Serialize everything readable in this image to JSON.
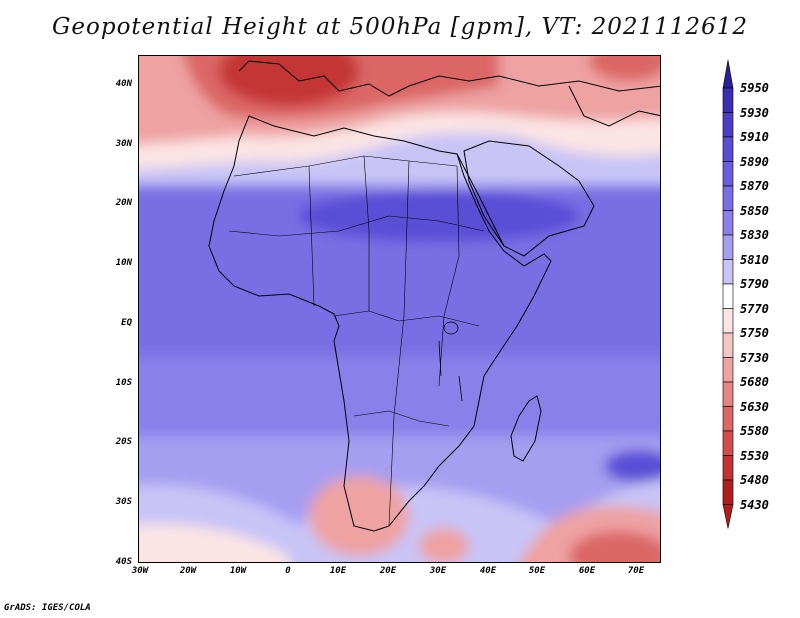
{
  "title": "Geopotential Height at 500hPa [gpm], VT: 2021112612",
  "credit": "GrADS: IGES/COLA",
  "lat_labels": [
    "40N",
    "30N",
    "20N",
    "10N",
    "EQ",
    "10S",
    "20S",
    "30S",
    "40S"
  ],
  "lon_labels": [
    "30W",
    "20W",
    "10W",
    "0",
    "10E",
    "20E",
    "30E",
    "40E",
    "50E",
    "60E",
    "70E"
  ],
  "colorbar": {
    "levels": [
      "5950",
      "5930",
      "5910",
      "5890",
      "5870",
      "5850",
      "5830",
      "5810",
      "5790",
      "5770",
      "5750",
      "5730",
      "5680",
      "5630",
      "5580",
      "5530",
      "5480",
      "5430"
    ],
    "colors": [
      "#2a1e96",
      "#3a2eb4",
      "#4a3ec8",
      "#5a4ed6",
      "#6a5ee0",
      "#7a6ee4",
      "#8b80ea",
      "#a69ef0",
      "#c8c4f6",
      "#ffffff",
      "#fbe4e4",
      "#f6c6c6",
      "#eea2a2",
      "#e58484",
      "#dc6666",
      "#d24c4c",
      "#c43434",
      "#b21e1e"
    ]
  },
  "map_colors": {
    "north_dark": "#c43434",
    "north_mid": "#dc6666",
    "north_light": "#eea2a2",
    "transition": "#c8c4f6",
    "tropics": "#7a6ee4",
    "tropics_dark": "#5a4ed6",
    "south_light": "#a69ef0",
    "south_white": "#fbe4e4"
  }
}
